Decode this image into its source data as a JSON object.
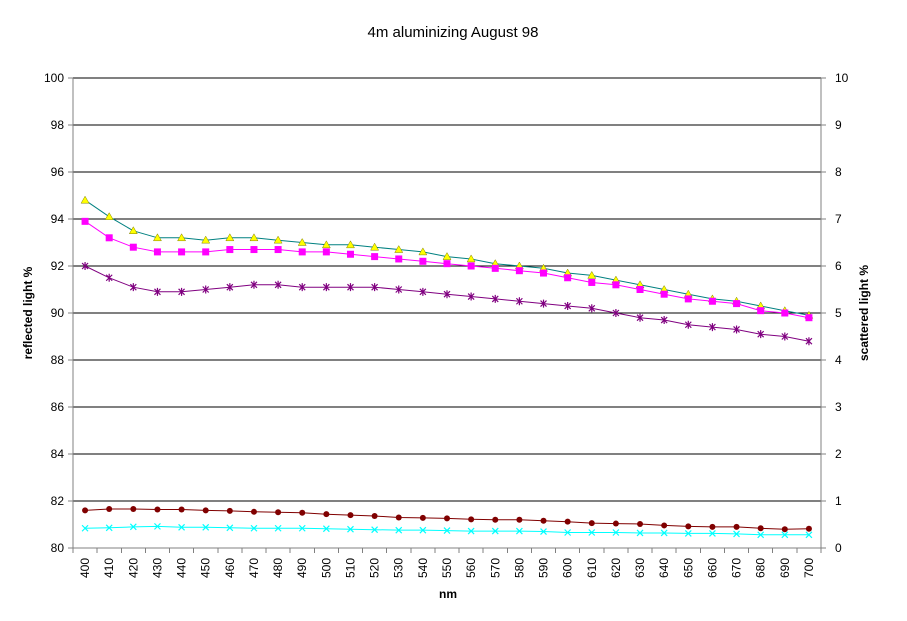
{
  "chart_data": {
    "type": "line",
    "title": "4m aluminizing August 98",
    "xlabel": "nm",
    "ylabel": "reflected light %",
    "y2label": "scattered light %",
    "ylim": [
      80,
      100
    ],
    "y2lim": [
      0,
      10
    ],
    "yticks": [
      "80",
      "82",
      "84",
      "86",
      "88",
      "90",
      "92",
      "94",
      "96",
      "98",
      "100"
    ],
    "y2ticks": [
      "0",
      "1",
      "2",
      "3",
      "4",
      "5",
      "6",
      "7",
      "8",
      "9",
      "10"
    ],
    "categories": [
      "400",
      "410",
      "420",
      "430",
      "440",
      "450",
      "460",
      "470",
      "480",
      "490",
      "500",
      "510",
      "520",
      "530",
      "540",
      "550",
      "560",
      "570",
      "580",
      "590",
      "600",
      "610",
      "620",
      "630",
      "640",
      "650",
      "660",
      "670",
      "680",
      "690",
      "700"
    ],
    "grid": true,
    "legend": "none",
    "series": [
      {
        "axis": "left",
        "color": "#ffff00",
        "line_color": "#008080",
        "marker": "triangle",
        "values": [
          94.8,
          94.1,
          93.5,
          93.2,
          93.2,
          93.1,
          93.2,
          93.2,
          93.1,
          93.0,
          92.9,
          92.9,
          92.8,
          92.7,
          92.6,
          92.4,
          92.3,
          92.1,
          92.0,
          91.9,
          91.7,
          91.6,
          91.4,
          91.2,
          91.0,
          90.8,
          90.6,
          90.5,
          90.3,
          90.1,
          89.9
        ]
      },
      {
        "axis": "left",
        "color": "#ff00ff",
        "line_color": "#ff00ff",
        "marker": "square",
        "values": [
          93.9,
          93.2,
          92.8,
          92.6,
          92.6,
          92.6,
          92.7,
          92.7,
          92.7,
          92.6,
          92.6,
          92.5,
          92.4,
          92.3,
          92.2,
          92.1,
          92.0,
          91.9,
          91.8,
          91.7,
          91.5,
          91.3,
          91.2,
          91.0,
          90.8,
          90.6,
          90.5,
          90.4,
          90.1,
          90.0,
          89.8
        ]
      },
      {
        "axis": "left",
        "color": "#800080",
        "line_color": "#800080",
        "marker": "star",
        "values": [
          92.0,
          91.5,
          91.1,
          90.9,
          90.9,
          91.0,
          91.1,
          91.2,
          91.2,
          91.1,
          91.1,
          91.1,
          91.1,
          91.0,
          90.9,
          90.8,
          90.7,
          90.6,
          90.5,
          90.4,
          90.3,
          90.2,
          90.0,
          89.8,
          89.7,
          89.5,
          89.4,
          89.3,
          89.1,
          89.0,
          88.8
        ]
      },
      {
        "axis": "right",
        "color": "#800000",
        "line_color": "#800000",
        "marker": "circle",
        "values": [
          0.8,
          0.83,
          0.83,
          0.82,
          0.82,
          0.8,
          0.79,
          0.77,
          0.76,
          0.75,
          0.72,
          0.7,
          0.68,
          0.65,
          0.64,
          0.63,
          0.61,
          0.6,
          0.6,
          0.58,
          0.56,
          0.53,
          0.52,
          0.51,
          0.48,
          0.46,
          0.45,
          0.45,
          0.42,
          0.4,
          0.41
        ]
      },
      {
        "axis": "right",
        "color": "#00ffff",
        "line_color": "#00ffff",
        "marker": "x",
        "values": [
          0.42,
          0.43,
          0.45,
          0.46,
          0.44,
          0.44,
          0.43,
          0.42,
          0.42,
          0.42,
          0.41,
          0.4,
          0.39,
          0.38,
          0.38,
          0.37,
          0.36,
          0.36,
          0.36,
          0.35,
          0.33,
          0.33,
          0.33,
          0.32,
          0.32,
          0.31,
          0.31,
          0.3,
          0.28,
          0.28,
          0.28
        ]
      }
    ]
  }
}
